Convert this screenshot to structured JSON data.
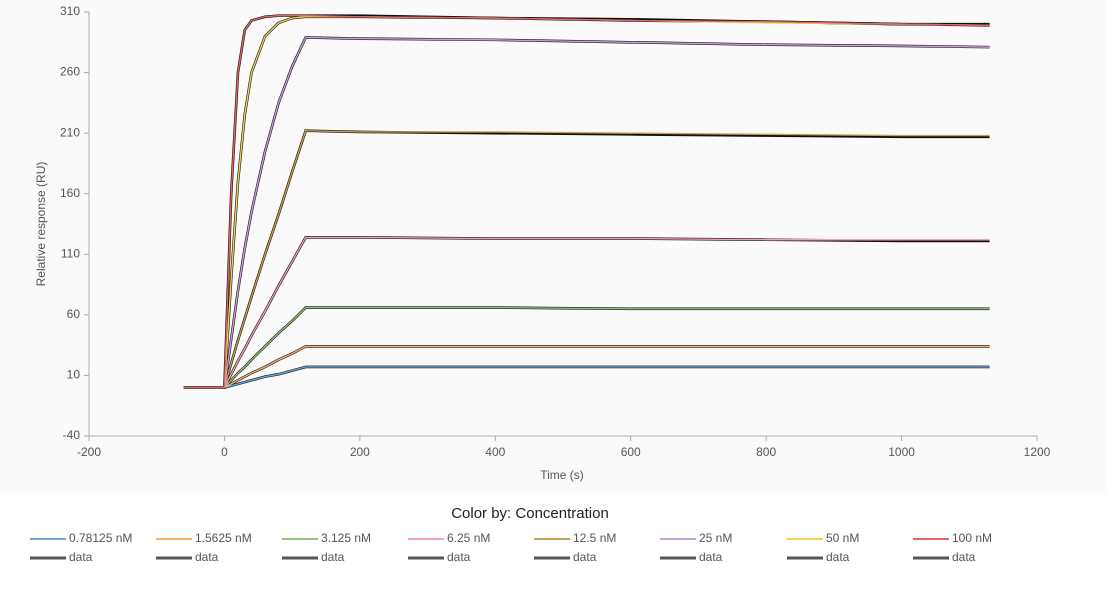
{
  "chart_data": {
    "type": "line",
    "x_label": "Time (s)",
    "y_label": "Relative response (RU)",
    "legend_title": "Color by: Concentration",
    "x": [
      -60,
      0,
      10,
      20,
      30,
      40,
      60,
      80,
      100,
      120,
      200,
      400,
      600,
      800,
      1000,
      1130
    ],
    "xlim": [
      -200,
      1200
    ],
    "xticks": [
      -200,
      0,
      200,
      400,
      600,
      800,
      1000,
      1200
    ],
    "ylim": [
      -40,
      310
    ],
    "yticks": [
      -40,
      10,
      60,
      110,
      160,
      210,
      260,
      310
    ],
    "grid": false,
    "series": [
      {
        "name": "0.78125 nM",
        "color": "#6fa8dc",
        "values": [
          0,
          0,
          1.5,
          3,
          4.5,
          6,
          9,
          11,
          14,
          17,
          17,
          17,
          17,
          17,
          17,
          17
        ]
      },
      {
        "name": "1.5625 nM",
        "color": "#f6b26b",
        "values": [
          0,
          0,
          3,
          6,
          9,
          12,
          17,
          23,
          28,
          34,
          34,
          34,
          34,
          34,
          34,
          34
        ]
      },
      {
        "name": "3.125 nM",
        "color": "#93c47d",
        "values": [
          0,
          0,
          6,
          12,
          17,
          23,
          34,
          45,
          55,
          66,
          66,
          66,
          65,
          65,
          65,
          65
        ]
      },
      {
        "name": "6.25 nM",
        "color": "#f4a0b9",
        "values": [
          0,
          0,
          11,
          22,
          32,
          43,
          63,
          84,
          104,
          124,
          124,
          123,
          123,
          122,
          122,
          122
        ]
      },
      {
        "name": "12.5 nM",
        "color": "#c9a04a",
        "values": [
          0,
          0,
          20,
          39,
          57,
          75,
          110,
          143,
          178,
          212,
          211,
          211,
          210,
          209,
          208,
          208
        ]
      },
      {
        "name": "25 nM",
        "color": "#c9a0dc",
        "values": [
          0,
          0,
          40,
          80,
          115,
          145,
          195,
          235,
          265,
          289,
          288,
          287,
          285,
          283,
          282,
          281
        ]
      },
      {
        "name": "50 nM",
        "color": "#f1d45a",
        "values": [
          0,
          0,
          90,
          170,
          225,
          260,
          290,
          301,
          305,
          306,
          306,
          305,
          303,
          301,
          300,
          299
        ]
      },
      {
        "name": "100 nM",
        "color": "#e06666",
        "values": [
          0,
          0,
          160,
          260,
          295,
          303,
          306,
          307,
          307,
          307,
          306,
          305,
          303,
          302,
          300,
          299
        ]
      },
      {
        "name": "data",
        "color": "#111111",
        "values": [
          0,
          0,
          1.5,
          3,
          4.5,
          6,
          9,
          11,
          14,
          17,
          17,
          17,
          17,
          17,
          17,
          17
        ]
      },
      {
        "name": "data",
        "color": "#111111",
        "values": [
          0,
          0,
          3,
          6,
          9,
          12,
          17,
          23,
          28,
          34,
          34,
          34,
          34,
          34,
          34,
          34
        ]
      },
      {
        "name": "data",
        "color": "#111111",
        "values": [
          0,
          0,
          6,
          12,
          17,
          23,
          34,
          45,
          55,
          66,
          66,
          66,
          65,
          65,
          65,
          65
        ]
      },
      {
        "name": "data",
        "color": "#111111",
        "values": [
          0,
          0,
          11,
          22,
          32,
          43,
          63,
          84,
          104,
          124,
          124,
          123,
          123,
          122,
          121,
          121
        ]
      },
      {
        "name": "data",
        "color": "#111111",
        "values": [
          0,
          0,
          20,
          39,
          57,
          75,
          110,
          143,
          178,
          212,
          211,
          210,
          209,
          208,
          207,
          207
        ]
      },
      {
        "name": "data",
        "color": "#111111",
        "values": [
          0,
          0,
          40,
          80,
          115,
          145,
          195,
          235,
          265,
          289,
          288,
          287,
          285,
          283,
          282,
          281
        ]
      },
      {
        "name": "data",
        "color": "#111111",
        "values": [
          0,
          0,
          90,
          170,
          225,
          260,
          290,
          301,
          305,
          306,
          306,
          305,
          303,
          302,
          300,
          299
        ]
      },
      {
        "name": "data",
        "color": "#111111",
        "values": [
          0,
          0,
          160,
          260,
          295,
          303,
          306,
          307,
          307,
          307,
          307,
          305,
          304,
          302,
          300,
          300
        ]
      }
    ]
  }
}
